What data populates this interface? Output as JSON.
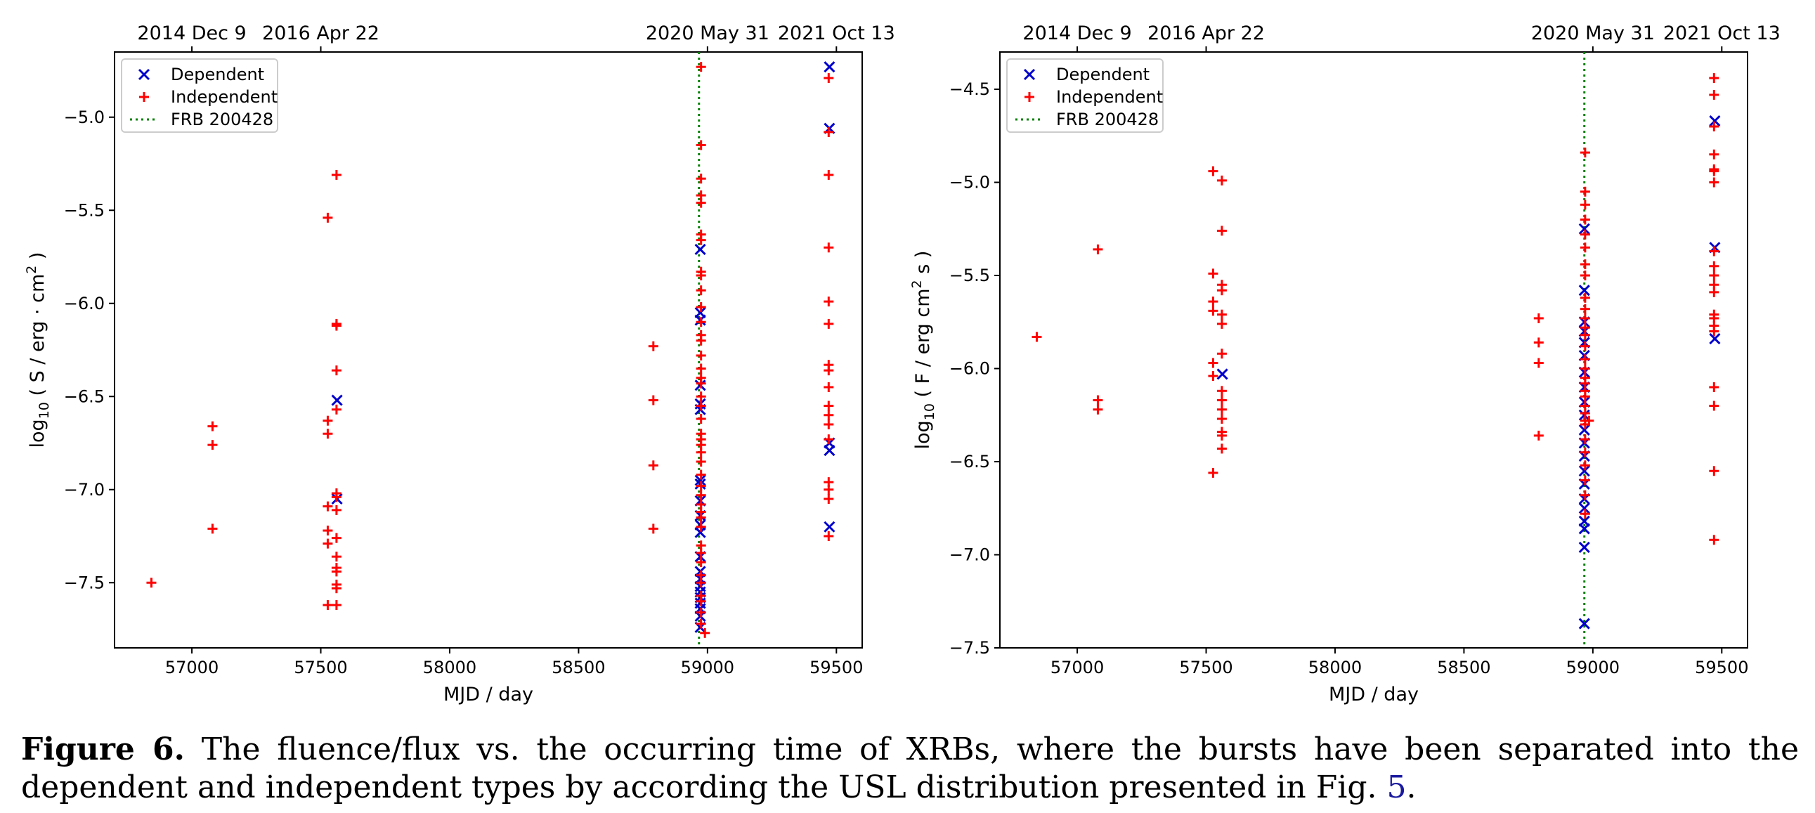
{
  "chart_data": [
    {
      "type": "scatter",
      "panel": "left",
      "xlabel": "MJD / day",
      "ylabel": "log10 ( S / erg · cm2 )",
      "ylabel_parts": {
        "prefix": "log",
        "sub": "10",
        "mid": " ( S / erg · cm",
        "sup": "2",
        "suffix": " )"
      },
      "xlim": [
        56700,
        59600
      ],
      "ylim": [
        -7.85,
        -4.65
      ],
      "xticks": [
        57000,
        57500,
        58000,
        58500,
        59000,
        59500
      ],
      "yticks": [
        -7.5,
        -7.0,
        -6.5,
        -6.0,
        -5.5,
        -5.0
      ],
      "ytick_labels": [
        "−7.5",
        "−7.0",
        "−6.5",
        "−6.0",
        "−5.5",
        "−5.0"
      ],
      "top_axis": [
        {
          "mjd": 57000,
          "label": "2014 Dec 9"
        },
        {
          "mjd": 57500,
          "label": "2016 Apr 22"
        },
        {
          "mjd": 59000,
          "label": "2020 May 31"
        },
        {
          "mjd": 59500,
          "label": "2021 Oct 13"
        }
      ],
      "vline": {
        "x": 58967,
        "name": "FRB 200428",
        "color": "#008000",
        "style": "dotted"
      },
      "legend": {
        "placement": "top-left",
        "entries": [
          "Dependent",
          "Independent",
          "FRB 200428"
        ]
      },
      "series": [
        {
          "name": "Dependent",
          "marker": "x",
          "color": "#0000cc",
          "points": [
            [
              57563,
              -6.52
            ],
            [
              57563,
              -7.05
            ],
            [
              58972,
              -5.71
            ],
            [
              58972,
              -6.05
            ],
            [
              58972,
              -6.09
            ],
            [
              58972,
              -6.44
            ],
            [
              58972,
              -6.54
            ],
            [
              58972,
              -6.57
            ],
            [
              58972,
              -6.95
            ],
            [
              58972,
              -6.97
            ],
            [
              58972,
              -7.06
            ],
            [
              58972,
              -7.14
            ],
            [
              58972,
              -7.19
            ],
            [
              58972,
              -7.23
            ],
            [
              58972,
              -7.36
            ],
            [
              58972,
              -7.44
            ],
            [
              58972,
              -7.48
            ],
            [
              58972,
              -7.52
            ],
            [
              58972,
              -7.55
            ],
            [
              58972,
              -7.58
            ],
            [
              58972,
              -7.61
            ],
            [
              58972,
              -7.64
            ],
            [
              58972,
              -7.68
            ],
            [
              58972,
              -7.74
            ],
            [
              59473,
              -4.73
            ],
            [
              59473,
              -5.06
            ],
            [
              59473,
              -6.75
            ],
            [
              59473,
              -6.79
            ],
            [
              59473,
              -7.2
            ]
          ]
        },
        {
          "name": "Independent",
          "marker": "+",
          "color": "#ff0000",
          "points": [
            [
              56843,
              -7.5
            ],
            [
              57080,
              -6.66
            ],
            [
              57080,
              -6.76
            ],
            [
              57080,
              -7.21
            ],
            [
              57527,
              -5.54
            ],
            [
              57527,
              -6.63
            ],
            [
              57527,
              -6.7
            ],
            [
              57527,
              -7.09
            ],
            [
              57527,
              -7.22
            ],
            [
              57527,
              -7.29
            ],
            [
              57527,
              -7.62
            ],
            [
              57561,
              -5.31
            ],
            [
              57561,
              -6.11
            ],
            [
              57561,
              -6.12
            ],
            [
              57561,
              -6.36
            ],
            [
              57561,
              -6.57
            ],
            [
              57561,
              -7.02
            ],
            [
              57561,
              -7.04
            ],
            [
              57561,
              -7.11
            ],
            [
              57561,
              -7.26
            ],
            [
              57561,
              -7.36
            ],
            [
              57561,
              -7.42
            ],
            [
              57561,
              -7.44
            ],
            [
              57561,
              -7.51
            ],
            [
              57561,
              -7.53
            ],
            [
              57561,
              -7.62
            ],
            [
              58790,
              -6.23
            ],
            [
              58790,
              -6.52
            ],
            [
              58790,
              -6.87
            ],
            [
              58790,
              -7.21
            ],
            [
              58975,
              -4.73
            ],
            [
              58975,
              -5.15
            ],
            [
              58975,
              -5.33
            ],
            [
              58975,
              -5.42
            ],
            [
              58975,
              -5.46
            ],
            [
              58975,
              -5.63
            ],
            [
              58975,
              -5.66
            ],
            [
              58975,
              -5.83
            ],
            [
              58975,
              -5.85
            ],
            [
              58975,
              -5.93
            ],
            [
              58975,
              -6.02
            ],
            [
              58975,
              -6.1
            ],
            [
              58975,
              -6.17
            ],
            [
              58975,
              -6.2
            ],
            [
              58975,
              -6.28
            ],
            [
              58975,
              -6.35
            ],
            [
              58975,
              -6.4
            ],
            [
              58975,
              -6.43
            ],
            [
              58975,
              -6.5
            ],
            [
              58975,
              -6.55
            ],
            [
              58975,
              -6.62
            ],
            [
              58975,
              -6.7
            ],
            [
              58975,
              -6.73
            ],
            [
              58975,
              -6.76
            ],
            [
              58975,
              -6.8
            ],
            [
              58975,
              -6.85
            ],
            [
              58975,
              -6.92
            ],
            [
              58975,
              -6.98
            ],
            [
              58975,
              -7.03
            ],
            [
              58975,
              -7.08
            ],
            [
              58975,
              -7.12
            ],
            [
              58975,
              -7.15
            ],
            [
              58975,
              -7.2
            ],
            [
              58975,
              -7.3
            ],
            [
              58975,
              -7.34
            ],
            [
              58975,
              -7.39
            ],
            [
              58975,
              -7.46
            ],
            [
              58975,
              -7.5
            ],
            [
              58975,
              -7.57
            ],
            [
              58975,
              -7.6
            ],
            [
              58975,
              -7.66
            ],
            [
              58975,
              -7.72
            ],
            [
              58990,
              -7.77
            ],
            [
              59470,
              -4.79
            ],
            [
              59470,
              -5.08
            ],
            [
              59470,
              -5.31
            ],
            [
              59470,
              -5.7
            ],
            [
              59470,
              -5.99
            ],
            [
              59470,
              -6.11
            ],
            [
              59470,
              -6.33
            ],
            [
              59470,
              -6.36
            ],
            [
              59470,
              -6.45
            ],
            [
              59470,
              -6.55
            ],
            [
              59470,
              -6.6
            ],
            [
              59470,
              -6.65
            ],
            [
              59470,
              -6.73
            ],
            [
              59470,
              -6.96
            ],
            [
              59470,
              -7.0
            ],
            [
              59470,
              -7.05
            ],
            [
              59470,
              -7.25
            ]
          ]
        }
      ]
    },
    {
      "type": "scatter",
      "panel": "right",
      "xlabel": "MJD / day",
      "ylabel": "log10 ( F / erg cm2 s )",
      "ylabel_parts": {
        "prefix": "log",
        "sub": "10",
        "mid": " ( F / erg cm",
        "sup": "2",
        "suffix": " s )"
      },
      "xlim": [
        56700,
        59600
      ],
      "ylim": [
        -7.5,
        -4.3
      ],
      "xticks": [
        57000,
        57500,
        58000,
        58500,
        59000,
        59500
      ],
      "yticks": [
        -7.5,
        -7.0,
        -6.5,
        -6.0,
        -5.5,
        -5.0,
        -4.5
      ],
      "ytick_labels": [
        "−7.5",
        "−7.0",
        "−6.5",
        "−6.0",
        "−5.5",
        "−5.0",
        "−4.5"
      ],
      "top_axis": [
        {
          "mjd": 57000,
          "label": "2014 Dec 9"
        },
        {
          "mjd": 57500,
          "label": "2016 Apr 22"
        },
        {
          "mjd": 59000,
          "label": "2020 May 31"
        },
        {
          "mjd": 59500,
          "label": "2021 Oct 13"
        }
      ],
      "vline": {
        "x": 58967,
        "name": "FRB 200428",
        "color": "#008000",
        "style": "dotted"
      },
      "legend": {
        "placement": "top-left",
        "entries": [
          "Dependent",
          "Independent",
          "FRB 200428"
        ]
      },
      "series": [
        {
          "name": "Dependent",
          "marker": "x",
          "color": "#0000cc",
          "points": [
            [
              57563,
              -6.03
            ],
            [
              58967,
              -5.25
            ],
            [
              58967,
              -5.58
            ],
            [
              58967,
              -5.75
            ],
            [
              58967,
              -5.8
            ],
            [
              58967,
              -5.86
            ],
            [
              58967,
              -5.93
            ],
            [
              58967,
              -6.02
            ],
            [
              58967,
              -6.1
            ],
            [
              58967,
              -6.18
            ],
            [
              58967,
              -6.25
            ],
            [
              58967,
              -6.33
            ],
            [
              58967,
              -6.4
            ],
            [
              58967,
              -6.47
            ],
            [
              58967,
              -6.55
            ],
            [
              58967,
              -6.62
            ],
            [
              58967,
              -6.7
            ],
            [
              58967,
              -6.75
            ],
            [
              58967,
              -6.82
            ],
            [
              58967,
              -6.86
            ],
            [
              58967,
              -6.96
            ],
            [
              58967,
              -7.37
            ],
            [
              59473,
              -4.67
            ],
            [
              59473,
              -5.35
            ],
            [
              59473,
              -5.84
            ]
          ]
        },
        {
          "name": "Independent",
          "marker": "+",
          "color": "#ff0000",
          "points": [
            [
              56843,
              -5.83
            ],
            [
              57080,
              -5.36
            ],
            [
              57080,
              -6.17
            ],
            [
              57080,
              -6.22
            ],
            [
              57527,
              -4.94
            ],
            [
              57527,
              -5.49
            ],
            [
              57527,
              -5.64
            ],
            [
              57527,
              -5.69
            ],
            [
              57527,
              -5.97
            ],
            [
              57527,
              -6.04
            ],
            [
              57527,
              -6.56
            ],
            [
              57561,
              -4.99
            ],
            [
              57561,
              -5.26
            ],
            [
              57561,
              -5.55
            ],
            [
              57561,
              -5.58
            ],
            [
              57561,
              -5.71
            ],
            [
              57561,
              -5.76
            ],
            [
              57561,
              -5.92
            ],
            [
              57561,
              -6.12
            ],
            [
              57561,
              -6.17
            ],
            [
              57561,
              -6.22
            ],
            [
              57561,
              -6.27
            ],
            [
              57561,
              -6.34
            ],
            [
              57561,
              -6.36
            ],
            [
              57561,
              -6.43
            ],
            [
              58790,
              -5.73
            ],
            [
              58790,
              -5.86
            ],
            [
              58790,
              -5.97
            ],
            [
              58790,
              -6.36
            ],
            [
              58970,
              -4.84
            ],
            [
              58970,
              -5.05
            ],
            [
              58970,
              -5.12
            ],
            [
              58970,
              -5.2
            ],
            [
              58970,
              -5.28
            ],
            [
              58970,
              -5.35
            ],
            [
              58970,
              -5.44
            ],
            [
              58970,
              -5.5
            ],
            [
              58970,
              -5.62
            ],
            [
              58970,
              -5.68
            ],
            [
              58970,
              -5.73
            ],
            [
              58970,
              -5.78
            ],
            [
              58970,
              -5.82
            ],
            [
              58970,
              -5.88
            ],
            [
              58970,
              -5.95
            ],
            [
              58970,
              -6.0
            ],
            [
              58970,
              -6.05
            ],
            [
              58970,
              -6.08
            ],
            [
              58970,
              -6.12
            ],
            [
              58970,
              -6.15
            ],
            [
              58970,
              -6.2
            ],
            [
              58970,
              -6.24
            ],
            [
              58970,
              -6.28
            ],
            [
              58970,
              -6.3
            ],
            [
              58970,
              -6.38
            ],
            [
              58970,
              -6.45
            ],
            [
              58970,
              -6.52
            ],
            [
              58970,
              -6.6
            ],
            [
              58970,
              -6.68
            ],
            [
              58970,
              -6.78
            ],
            [
              58985,
              -6.28
            ],
            [
              59470,
              -4.44
            ],
            [
              59470,
              -4.53
            ],
            [
              59470,
              -4.7
            ],
            [
              59470,
              -4.85
            ],
            [
              59470,
              -4.93
            ],
            [
              59470,
              -4.94
            ],
            [
              59470,
              -5.0
            ],
            [
              59470,
              -5.37
            ],
            [
              59470,
              -5.45
            ],
            [
              59470,
              -5.5
            ],
            [
              59470,
              -5.55
            ],
            [
              59470,
              -5.59
            ],
            [
              59470,
              -5.71
            ],
            [
              59470,
              -5.73
            ],
            [
              59470,
              -5.77
            ],
            [
              59470,
              -5.8
            ],
            [
              59470,
              -6.1
            ],
            [
              59470,
              -6.2
            ],
            [
              59470,
              -6.55
            ],
            [
              59470,
              -6.92
            ]
          ]
        }
      ]
    }
  ],
  "caption": {
    "label": "Figure 6.",
    "text": " The fluence/flux vs.  the occurring time of XRBs, where the bursts have been separated into the dependent and independent types by according the USL distribution presented in Fig. ",
    "ref": "5",
    "end": "."
  }
}
